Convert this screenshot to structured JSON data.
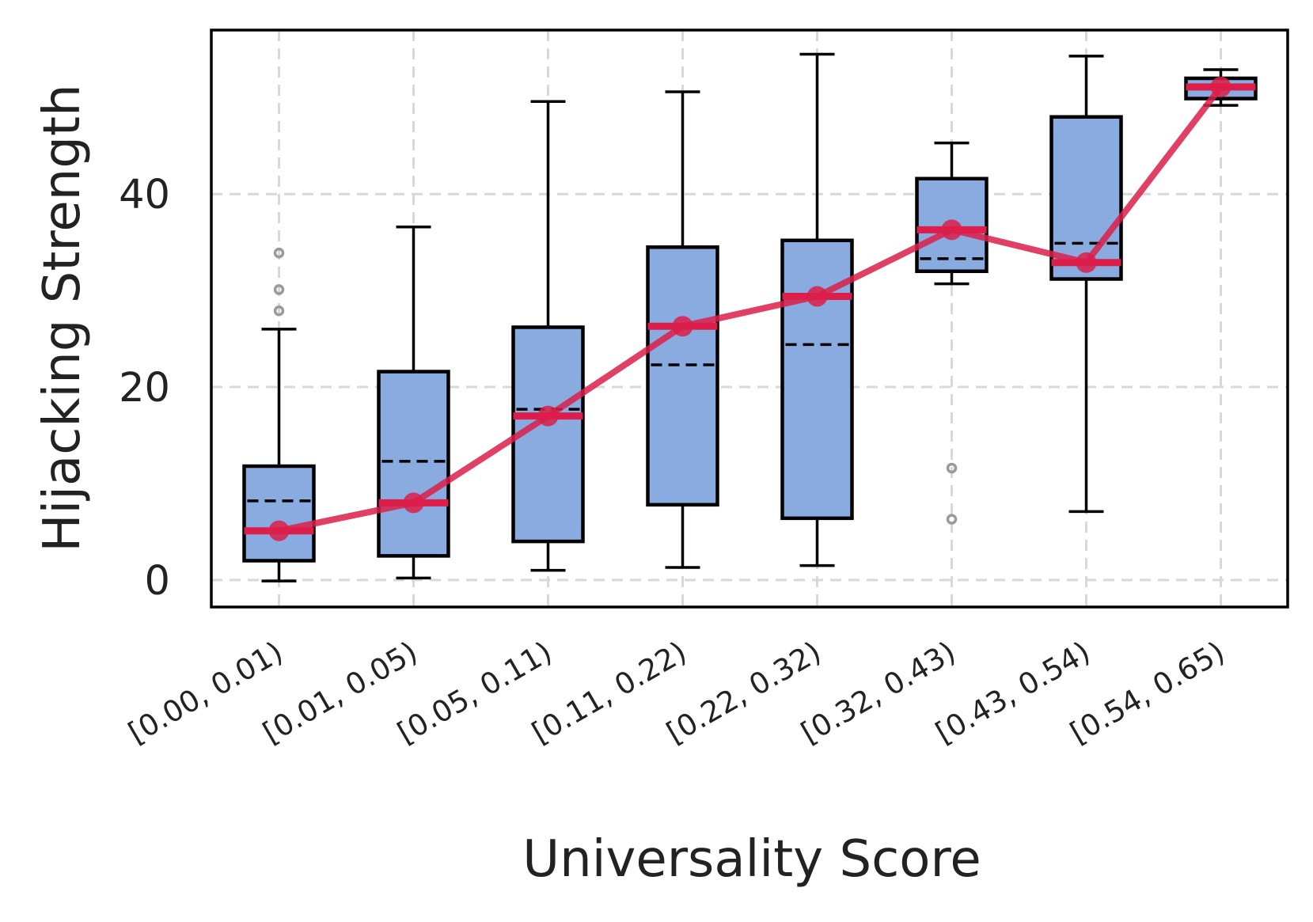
{
  "chart_data": {
    "type": "box",
    "xlabel": "Universality Score",
    "ylabel": "Hijacking Strength",
    "ylim": [
      -2.8,
      57
    ],
    "yticks": [
      0,
      20,
      40
    ],
    "grid": true,
    "categories": [
      "[0.00, 0.01)",
      "[0.01, 0.05)",
      "[0.05, 0.11)",
      "[0.11, 0.22)",
      "[0.22, 0.32)",
      "[0.32, 0.43)",
      "[0.43, 0.54)",
      "[0.54, 0.65)"
    ],
    "boxes": [
      {
        "whisker_low": -0.1,
        "q1": 2.0,
        "median": 5.1,
        "mean": 8.2,
        "q3": 11.8,
        "whisker_high": 26.0,
        "outliers": [
          27.9,
          30.1,
          33.9
        ]
      },
      {
        "whisker_low": 0.2,
        "q1": 2.5,
        "median": 8.0,
        "mean": 12.3,
        "q3": 21.6,
        "whisker_high": 36.6,
        "outliers": []
      },
      {
        "whisker_low": 1.0,
        "q1": 4.0,
        "median": 17.0,
        "mean": 17.7,
        "q3": 26.2,
        "whisker_high": 49.6,
        "outliers": []
      },
      {
        "whisker_low": 1.3,
        "q1": 7.8,
        "median": 26.3,
        "mean": 22.3,
        "q3": 34.5,
        "whisker_high": 50.6,
        "outliers": []
      },
      {
        "whisker_low": 1.5,
        "q1": 6.4,
        "median": 29.4,
        "mean": 24.4,
        "q3": 35.2,
        "whisker_high": 54.5,
        "outliers": []
      },
      {
        "whisker_low": 30.7,
        "q1": 32.0,
        "median": 36.3,
        "mean": 33.3,
        "q3": 41.6,
        "whisker_high": 45.3,
        "outliers": [
          11.6,
          6.3
        ]
      },
      {
        "whisker_low": 7.1,
        "q1": 31.2,
        "median": 32.9,
        "mean": 34.9,
        "q3": 48.0,
        "whisker_high": 54.3,
        "outliers": []
      },
      {
        "whisker_low": 49.2,
        "q1": 49.9,
        "median": 51.1,
        "mean": 51.3,
        "q3": 52.0,
        "whisker_high": 52.9,
        "outliers": []
      }
    ],
    "median_line": [
      5.1,
      8.0,
      17.0,
      26.3,
      29.4,
      36.3,
      32.9,
      51.1
    ],
    "colors": {
      "box_fill": "#89ABDF",
      "box_edge": "#000000",
      "median_line": "#DC1F4A",
      "outlier": "#9a9a9a",
      "grid": "#d8d8d8"
    }
  }
}
